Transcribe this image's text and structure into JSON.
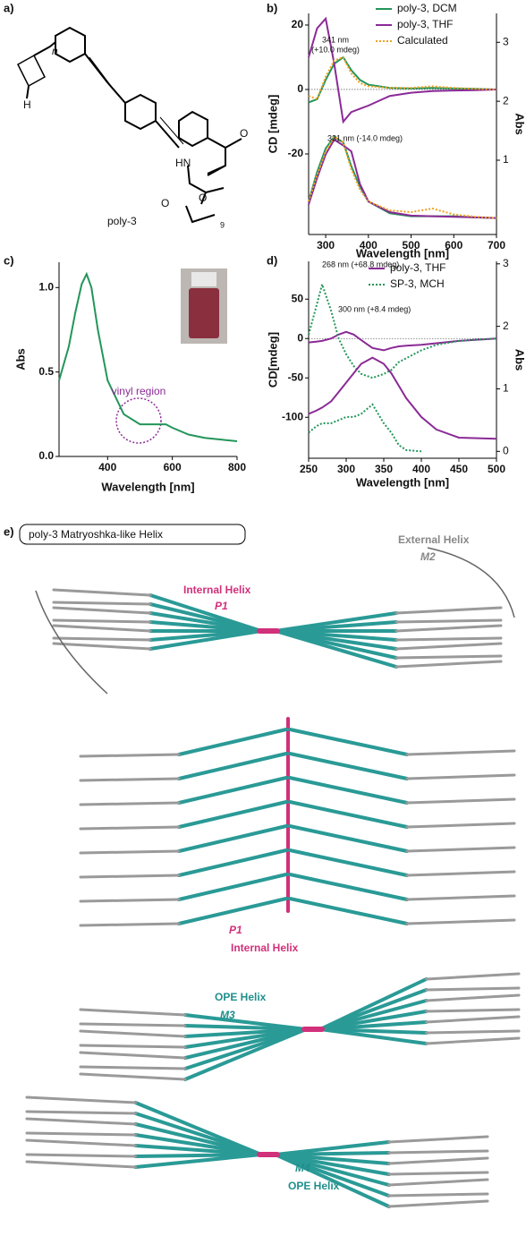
{
  "panel_labels": [
    "a)",
    "b)",
    "c)",
    "d)",
    "e)"
  ],
  "panel_a": {
    "compound": "poly-3",
    "n": "n",
    "h": "H",
    "hn": "HN",
    "o1": "O",
    "o2": "O",
    "o3": "O",
    "sub": "9"
  },
  "panel_e": {
    "box_title": "poly-3  Matryoshka-like Helix",
    "external": "External Helix",
    "m2": "M2",
    "internal_top": "Internal Helix",
    "p1_top": "P1",
    "p1_mid": "P1",
    "internal_mid": "Internal Helix",
    "ope_top": "OPE Helix",
    "m3": "M3",
    "m4": "M4",
    "ope_bottom": "OPE Helix"
  },
  "chart_data": [
    {
      "type": "line",
      "xlabel": "Wavelength  [nm]",
      "ylabel": "CD [mdeg]",
      "y2label": "Abs",
      "x": [
        260,
        280,
        300,
        320,
        341,
        360,
        380,
        400,
        450,
        500,
        550,
        600,
        650,
        700
      ],
      "xlim": [
        260,
        700
      ],
      "xticks": [
        300,
        400,
        500,
        600,
        700
      ],
      "ylim": [
        -45,
        23.6
      ],
      "yticks": [
        -20,
        0,
        20
      ],
      "y2lim": [
        -0.26,
        3.49
      ],
      "y2ticks": [
        1,
        2,
        3
      ],
      "zero_line": true,
      "annotations": [
        "341 nm",
        "(+10.0 mdeg)",
        "331 nm (-14.0 mdeg)"
      ],
      "series": [
        {
          "name": "poly-3, DCM",
          "color": "#23955a",
          "values": [
            -4,
            -3,
            3,
            8,
            10,
            6,
            3,
            1.5,
            0.5,
            0.3,
            0.5,
            0.3,
            0.2,
            0
          ]
        },
        {
          "name": "poly-3, THF",
          "color": "#8b2a96",
          "values": [
            10,
            19,
            22,
            8,
            -10,
            -7,
            -6,
            -5,
            -2,
            -1,
            -0.5,
            -0.3,
            -0.2,
            0
          ]
        },
        {
          "name": "Calculated",
          "color": "#f0a020",
          "style": "dotted",
          "values": [
            -2,
            -3,
            4,
            9,
            10,
            5,
            2,
            1,
            0.5,
            0.5,
            1,
            0.5,
            0.2,
            0
          ]
        },
        {
          "color": "#23955a",
          "axis": "y2",
          "values": [
            0.3,
            0.8,
            1.2,
            1.4,
            1.3,
            0.9,
            0.55,
            0.3,
            0.1,
            0.05,
            0.05,
            0.05,
            0.03,
            0.02
          ]
        },
        {
          "color": "#8b2a96",
          "axis": "y2",
          "values": [
            0.25,
            0.7,
            1.1,
            1.35,
            1.25,
            1.15,
            0.6,
            0.3,
            0.12,
            0.06,
            0.05,
            0.04,
            0.03,
            0.02
          ]
        },
        {
          "color": "#f0a020",
          "axis": "y2",
          "style": "dotted",
          "values": [
            0.3,
            0.75,
            1.15,
            1.4,
            1.3,
            0.85,
            0.5,
            0.3,
            0.15,
            0.12,
            0.18,
            0.08,
            0.04,
            0.02
          ]
        }
      ]
    },
    {
      "type": "line",
      "xlabel": "Wavelength  [nm]",
      "ylabel": "Abs",
      "x": [
        250,
        280,
        300,
        320,
        335,
        350,
        370,
        400,
        450,
        500,
        550,
        580,
        600,
        650,
        700,
        750,
        800
      ],
      "xlim": [
        250,
        800
      ],
      "xticks": [
        400,
        600,
        800
      ],
      "ylim": [
        0,
        1.15
      ],
      "yticks": [
        {
          "value": 0,
          "label": "0.0"
        },
        {
          "value": 0.5,
          "label": "0.5"
        },
        {
          "value": 1,
          "label": "1.0"
        }
      ],
      "annotations": [
        "vinyl region"
      ],
      "series": [
        {
          "color": "#23955a",
          "values": [
            0.45,
            0.65,
            0.85,
            1.02,
            1.08,
            1.0,
            0.75,
            0.45,
            0.25,
            0.19,
            0.19,
            0.19,
            0.17,
            0.13,
            0.11,
            0.1,
            0.09
          ]
        }
      ]
    },
    {
      "type": "line",
      "xlabel": "Wavelength  [nm]",
      "ylabel": "CD[mdeg]",
      "y2label": "Abs",
      "x": [
        250,
        260,
        268,
        280,
        290,
        300,
        310,
        320,
        335,
        350,
        360,
        370,
        380,
        400,
        420,
        450,
        500
      ],
      "xlim": [
        250,
        500
      ],
      "xticks": [
        250,
        300,
        350,
        400,
        450,
        500
      ],
      "ylim": [
        -152,
        98
      ],
      "yticks": [
        -100,
        -50,
        0,
        50
      ],
      "y2lim": [
        -0.11,
        3.04
      ],
      "y2ticks": [
        0,
        1,
        2,
        3
      ],
      "zero_line": true,
      "annotations": [
        "268 nm (+68.8 mdeg)",
        "300 nm (+8.4 mdeg)"
      ],
      "series": [
        {
          "name": "poly-3, THF",
          "color": "#8b2a96",
          "values": [
            -5,
            -4,
            -3,
            0,
            5,
            8.4,
            5,
            -2,
            -12,
            -15,
            -12,
            -10,
            -9,
            -8,
            -6,
            -3,
            0
          ]
        },
        {
          "name": "SP-3, MCH",
          "color": "#23955a",
          "style": "dotted",
          "values": [
            5,
            40,
            68.8,
            35,
            0,
            -20,
            -35,
            -45,
            -50,
            -45,
            -40,
            -30,
            -25,
            -15,
            -8,
            -3,
            0
          ]
        },
        {
          "color": "#8b2a96",
          "axis": "y2",
          "values": [
            0.6,
            0.65,
            0.7,
            0.8,
            0.95,
            1.1,
            1.25,
            1.4,
            1.5,
            1.4,
            1.25,
            1.05,
            0.85,
            0.55,
            0.35,
            0.22,
            0.2
          ]
        },
        {
          "color": "#23955a",
          "axis": "y2",
          "style": "dotted",
          "values": [
            0.3,
            0.4,
            0.45,
            0.45,
            0.5,
            0.55,
            0.55,
            0.6,
            0.75,
            0.45,
            0.3,
            0.1,
            0.02,
            0,
            null,
            null,
            null
          ]
        }
      ]
    }
  ]
}
